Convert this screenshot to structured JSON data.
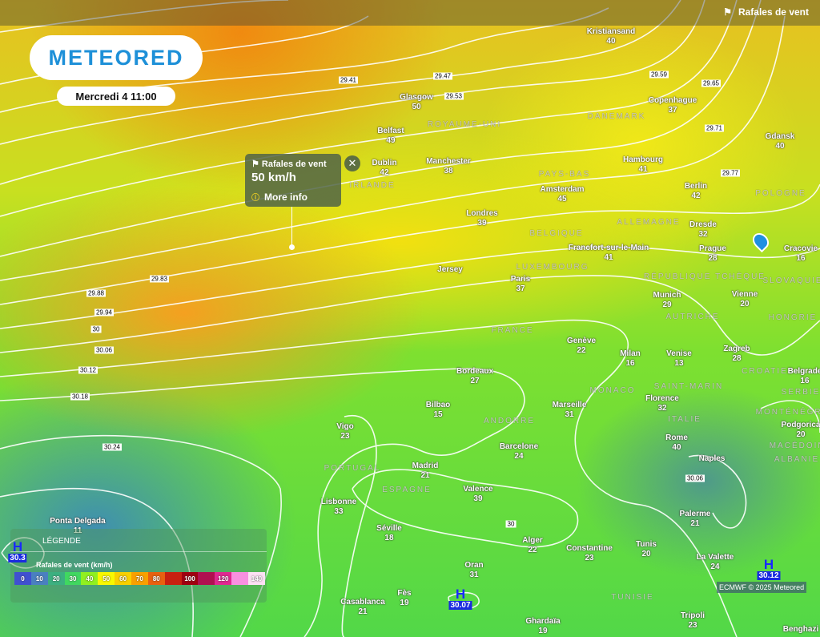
{
  "brand": "METEORED",
  "date": "Mercredi 4 11:00",
  "layer": {
    "icon": "wind-flag-icon",
    "label": "Rafales de vent"
  },
  "popup": {
    "title": "Rafales de vent",
    "value": "50 km/h",
    "more": "More info"
  },
  "cities": [
    {
      "name": "Kristiansand",
      "value": "40"
    },
    {
      "name": "Glasgow",
      "value": "50"
    },
    {
      "name": "Belfast",
      "value": "49"
    },
    {
      "name": "Dublin",
      "value": "42"
    },
    {
      "name": "Manchester",
      "value": "38"
    },
    {
      "name": "Copenhague",
      "value": "37"
    },
    {
      "name": "Hambourg",
      "value": "41"
    },
    {
      "name": "Gdansk",
      "value": "40"
    },
    {
      "name": "Amsterdam",
      "value": "45"
    },
    {
      "name": "Berlin",
      "value": "42"
    },
    {
      "name": "Londres",
      "value": "39"
    },
    {
      "name": "Dresde",
      "value": "32"
    },
    {
      "name": "Francfort-sur-le-Main",
      "value": "41"
    },
    {
      "name": "Prague",
      "value": "28"
    },
    {
      "name": "Cracovie",
      "value": "16"
    },
    {
      "name": "Paris",
      "value": "37"
    },
    {
      "name": "Munich",
      "value": "29"
    },
    {
      "name": "Vienne",
      "value": "20"
    },
    {
      "name": "Genève",
      "value": "22"
    },
    {
      "name": "Milan",
      "value": "16"
    },
    {
      "name": "Venise",
      "value": "13"
    },
    {
      "name": "Zagreb",
      "value": "28"
    },
    {
      "name": "Belgrade",
      "value": "16"
    },
    {
      "name": "Bordeaux",
      "value": "27"
    },
    {
      "name": "Bilbao",
      "value": "15"
    },
    {
      "name": "Marseille",
      "value": "31"
    },
    {
      "name": "Florence",
      "value": "32"
    },
    {
      "name": "Vigo",
      "value": "23"
    },
    {
      "name": "Podgorica",
      "value": "20"
    },
    {
      "name": "Rome",
      "value": "40"
    },
    {
      "name": "Barcelone",
      "value": "24"
    },
    {
      "name": "Madrid",
      "value": "21"
    },
    {
      "name": "Naples",
      "value": ""
    },
    {
      "name": "Valence",
      "value": "39"
    },
    {
      "name": "Lisbonne",
      "value": "33"
    },
    {
      "name": "Palerme",
      "value": "21"
    },
    {
      "name": "Séville",
      "value": "18"
    },
    {
      "name": "Alger",
      "value": "22"
    },
    {
      "name": "Constantine",
      "value": "23"
    },
    {
      "name": "Tunis",
      "value": "20"
    },
    {
      "name": "La Valette",
      "value": "24"
    },
    {
      "name": "Oran",
      "value": "31"
    },
    {
      "name": "Fès",
      "value": "19"
    },
    {
      "name": "Casablanca",
      "value": "21"
    },
    {
      "name": "Ghardaïa",
      "value": "19"
    },
    {
      "name": "Tripoli",
      "value": "23"
    },
    {
      "name": "Benghazi",
      "value": ""
    },
    {
      "name": "Ponta Delgada",
      "value": "11"
    },
    {
      "name": "Jersey",
      "value": ""
    }
  ],
  "countries": [
    "ROYAUME-UNI",
    "IRLANDE",
    "DANEMARK",
    "PAYS-BAS",
    "BELGIQUE",
    "LUXEMBOURG",
    "ALLEMAGNE",
    "POLOGNE",
    "RÉPUBLIQUE TCHÈQUE",
    "SLOVAQUIE",
    "AUTRICHE",
    "HONGRIE",
    "FRANCE",
    "CROATIE",
    "SERBIE",
    "MONACO",
    "SAINT-MARIN",
    "ANDORRE",
    "ITALIE",
    "MONTÉNÉGRO",
    "MACÉDOINE",
    "ALBANIE",
    "PORTUGAL",
    "ESPAGNE",
    "TUNISIE"
  ],
  "isobars": [
    "29.41",
    "29.47",
    "29.53",
    "29.59",
    "29.65",
    "29.71",
    "29.77",
    "29.83",
    "29.88",
    "29.94",
    "30",
    "30.06",
    "30.12",
    "30.18",
    "30.24",
    "30.06",
    "30"
  ],
  "highs": [
    {
      "label": "H",
      "value": "30.3"
    },
    {
      "label": "H",
      "value": "30.07"
    },
    {
      "label": "H",
      "value": "30.12"
    }
  ],
  "legend": {
    "title": "LÉGENDE",
    "subtitle": "Rafales de vent (km/h)",
    "stops": [
      {
        "label": "0",
        "color": "#4050d0"
      },
      {
        "label": "10",
        "color": "#4a80c0"
      },
      {
        "label": "20",
        "color": "#3cb080"
      },
      {
        "label": "30",
        "color": "#40d860"
      },
      {
        "label": "40",
        "color": "#90f020"
      },
      {
        "label": "50",
        "color": "#f8f800"
      },
      {
        "label": "60",
        "color": "#f8d000"
      },
      {
        "label": "70",
        "color": "#f8a000"
      },
      {
        "label": "80",
        "color": "#e86010"
      },
      {
        "label": "",
        "color": "#c82010"
      },
      {
        "label": "100",
        "color": "#a00010"
      },
      {
        "label": "",
        "color": "#b01050"
      },
      {
        "label": "120",
        "color": "#e02890"
      },
      {
        "label": "",
        "color": "#f890e0"
      },
      {
        "label": "140",
        "color": "#fce0f4"
      }
    ]
  },
  "credit": "ECMWF © 2025 Meteored"
}
